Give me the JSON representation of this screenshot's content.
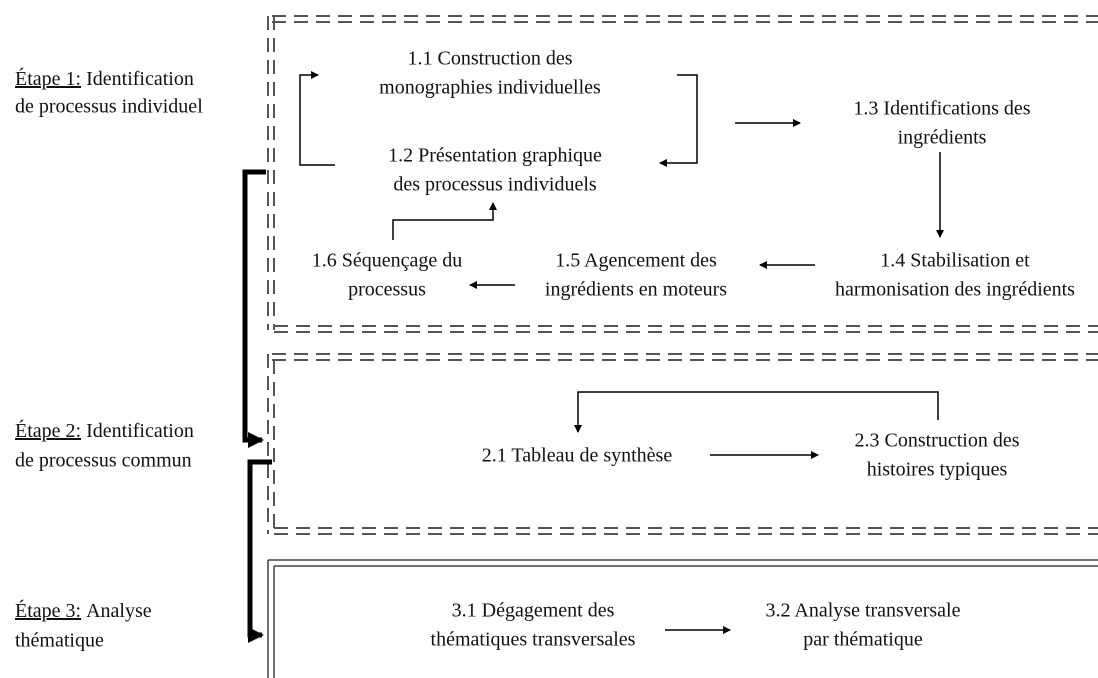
{
  "stages": [
    {
      "label": "Étape 1:",
      "title": "Identification",
      "subtitle": "de processus individuel"
    },
    {
      "label": "Étape 2:",
      "title": "Identification",
      "subtitle": "de processus commun"
    },
    {
      "label": "Étape 3:",
      "title": "Analyse",
      "subtitle": "thématique"
    }
  ],
  "nodes": [
    {
      "lines": [
        "1.1 Construction des",
        "monographies individuelles"
      ]
    },
    {
      "lines": [
        "1.2 Présentation graphique",
        "des processus individuels"
      ]
    },
    {
      "lines": [
        "1.3 Identifications des",
        "ingrédients"
      ]
    },
    {
      "lines": [
        "1.4 Stabilisation et",
        "harmonisation des ingrédients"
      ]
    },
    {
      "lines": [
        "1.5 Agencement des",
        "ingrédients en moteurs"
      ]
    },
    {
      "lines": [
        "1.6 Séquençage du",
        "processus"
      ]
    },
    {
      "lines": [
        "2.1 Tableau de synthèse"
      ]
    },
    {
      "lines": [
        "2.3 Construction des",
        "histoires typiques"
      ]
    },
    {
      "lines": [
        "3.1 Dégagement des",
        "thématiques transversales"
      ]
    },
    {
      "lines": [
        "3.2 Analyse transversale",
        "par thématique"
      ]
    }
  ]
}
